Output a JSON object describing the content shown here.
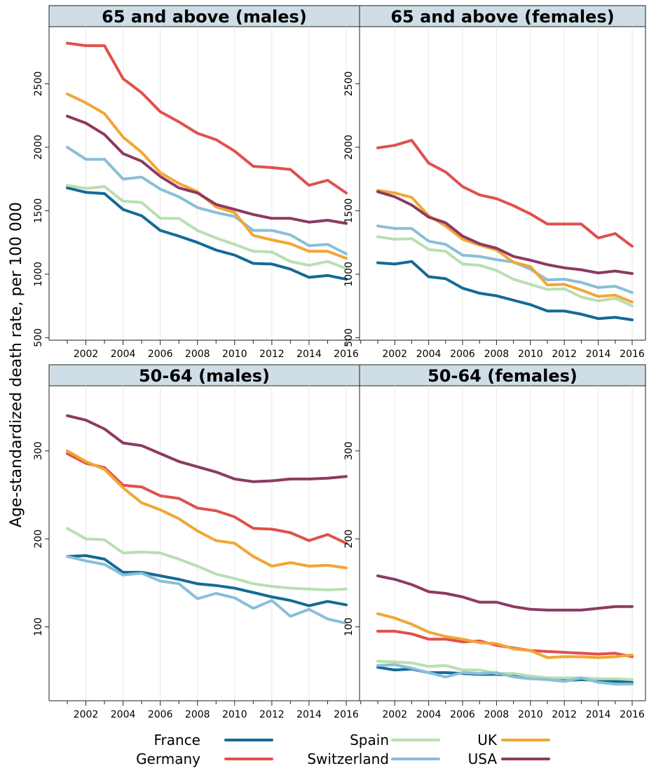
{
  "chart_data": {
    "type": "line",
    "ylabel": "Age-standardized death rate, per 100 000",
    "xlabel": "",
    "grid": true,
    "legend_position": "bottom",
    "x": [
      2001,
      2002,
      2003,
      2004,
      2005,
      2006,
      2007,
      2008,
      2009,
      2010,
      2011,
      2012,
      2013,
      2014,
      2015,
      2016
    ],
    "x_ticks": [
      "2002",
      "2004",
      "2006",
      "2008",
      "2010",
      "2012",
      "2014",
      "2016"
    ],
    "series_styles": [
      {
        "name": "France",
        "color": "#146a96"
      },
      {
        "name": "Germany",
        "color": "#e0514b"
      },
      {
        "name": "Spain",
        "color": "#b9dfb1"
      },
      {
        "name": "Switzerland",
        "color": "#89bfd8"
      },
      {
        "name": "UK",
        "color": "#f2a634"
      },
      {
        "name": "USA",
        "color": "#8c3a62"
      }
    ],
    "panels": [
      {
        "title": "65 and above (males)",
        "ylim": [
          480,
          2950
        ],
        "y_ticks": [
          "500",
          "1000",
          "1500",
          "2000",
          "2500"
        ],
        "series": [
          {
            "name": "France",
            "values": [
              1680,
              1645,
              1635,
              1510,
              1460,
              1345,
              1300,
              1250,
              1190,
              1150,
              1085,
              1080,
              1040,
              975,
              990,
              960
            ]
          },
          {
            "name": "Germany",
            "values": [
              2820,
              2800,
              2800,
              2540,
              2430,
              2280,
              2200,
              2110,
              2060,
              1970,
              1850,
              1840,
              1825,
              1700,
              1740,
              1640
            ]
          },
          {
            "name": "Spain",
            "values": [
              1700,
              1675,
              1690,
              1575,
              1565,
              1440,
              1440,
              1345,
              1285,
              1235,
              1180,
              1175,
              1100,
              1070,
              1100,
              1045
            ]
          },
          {
            "name": "Switzerland",
            "values": [
              2000,
              1905,
              1905,
              1750,
              1765,
              1670,
              1610,
              1525,
              1485,
              1455,
              1345,
              1345,
              1310,
              1225,
              1235,
              1160
            ]
          },
          {
            "name": "UK",
            "values": [
              2420,
              2350,
              2265,
              2080,
              1960,
              1800,
              1715,
              1650,
              1530,
              1485,
              1305,
              1270,
              1240,
              1180,
              1180,
              1125
            ]
          },
          {
            "name": "USA",
            "values": [
              2245,
              2190,
              2100,
              1950,
              1890,
              1770,
              1680,
              1640,
              1550,
              1510,
              1470,
              1440,
              1440,
              1410,
              1425,
              1400
            ]
          }
        ]
      },
      {
        "title": "65 and above (females)",
        "ylim": [
          480,
          2950
        ],
        "y_ticks": [
          "500",
          "1000",
          "1500",
          "2000",
          "2500"
        ],
        "series": [
          {
            "name": "France",
            "values": [
              1090,
              1080,
              1100,
              980,
              965,
              890,
              850,
              830,
              795,
              760,
              710,
              710,
              685,
              650,
              660,
              640
            ]
          },
          {
            "name": "Germany",
            "values": [
              1995,
              2015,
              2055,
              1875,
              1805,
              1690,
              1625,
              1595,
              1540,
              1475,
              1395,
              1395,
              1395,
              1285,
              1320,
              1220
            ]
          },
          {
            "name": "Spain",
            "values": [
              1295,
              1275,
              1280,
              1195,
              1180,
              1080,
              1070,
              1030,
              960,
              920,
              880,
              885,
              820,
              790,
              810,
              750
            ]
          },
          {
            "name": "Switzerland",
            "values": [
              1380,
              1360,
              1360,
              1260,
              1235,
              1150,
              1140,
              1115,
              1095,
              1040,
              955,
              960,
              935,
              895,
              905,
              855
            ]
          },
          {
            "name": "UK",
            "values": [
              1660,
              1640,
              1605,
              1460,
              1380,
              1275,
              1230,
              1190,
              1095,
              1060,
              915,
              920,
              875,
              825,
              835,
              780
            ]
          },
          {
            "name": "USA",
            "values": [
              1650,
              1610,
              1545,
              1450,
              1405,
              1300,
              1240,
              1205,
              1140,
              1110,
              1075,
              1050,
              1035,
              1010,
              1025,
              1005
            ]
          }
        ]
      },
      {
        "title": "50-64 (males)",
        "ylim": [
          16,
          374
        ],
        "y_ticks": [
          "100",
          "200",
          "300"
        ],
        "series": [
          {
            "name": "France",
            "values": [
              180,
              181,
              177,
              162,
              162,
              158,
              154,
              149,
              147,
              144,
              139,
              134,
              130,
              124,
              129,
              125
            ]
          },
          {
            "name": "Germany",
            "values": [
              297,
              286,
              281,
              261,
              259,
              249,
              246,
              235,
              232,
              225,
              212,
              211,
              207,
              198,
              205,
              195
            ]
          },
          {
            "name": "Spain",
            "values": [
              212,
              200,
              199,
              184,
              185,
              184,
              177,
              169,
              160,
              155,
              149,
              146,
              144,
              143,
              142,
              143
            ]
          },
          {
            "name": "Switzerland",
            "values": [
              180,
              175,
              171,
              159,
              161,
              152,
              149,
              132,
              138,
              133,
              121,
              130,
              112,
              120,
              109,
              104
            ]
          },
          {
            "name": "UK",
            "values": [
              300,
              288,
              279,
              258,
              241,
              233,
              223,
              209,
              198,
              195,
              180,
              169,
              173,
              169,
              170,
              167
            ]
          },
          {
            "name": "USA",
            "values": [
              340,
              335,
              325,
              309,
              306,
              297,
              288,
              282,
              276,
              268,
              265,
              266,
              268,
              268,
              269,
              271
            ]
          }
        ]
      },
      {
        "title": "50-64 (females)",
        "ylim": [
          16,
          374
        ],
        "y_ticks": [
          "100",
          "200",
          "300"
        ],
        "series": [
          {
            "name": "France",
            "values": [
              54,
              51,
              52,
              48,
              48,
              47,
              46,
              46,
              45,
              42,
              41,
              39,
              40,
              39,
              38,
              37
            ]
          },
          {
            "name": "Germany",
            "values": [
              95,
              95,
              92,
              86,
              86,
              83,
              84,
              79,
              76,
              73,
              72,
              71,
              70,
              69,
              70,
              66
            ]
          },
          {
            "name": "Spain",
            "values": [
              61,
              60,
              59,
              55,
              56,
              51,
              51,
              47,
              47,
              44,
              42,
              42,
              42,
              41,
              41,
              40
            ]
          },
          {
            "name": "Switzerland",
            "values": [
              56,
              57,
              53,
              48,
              43,
              48,
              47,
              48,
              43,
              41,
              40,
              38,
              42,
              37,
              35,
              35
            ]
          },
          {
            "name": "UK",
            "values": [
              115,
              110,
              103,
              94,
              89,
              86,
              82,
              81,
              75,
              73,
              65,
              66,
              66,
              65,
              66,
              68
            ]
          },
          {
            "name": "USA",
            "values": [
              158,
              154,
              148,
              140,
              138,
              134,
              128,
              128,
              123,
              120,
              119,
              119,
              119,
              121,
              123,
              123
            ]
          }
        ]
      }
    ],
    "legend": [
      {
        "label": "France",
        "color": "#146a96"
      },
      {
        "label": "Spain",
        "color": "#b9dfb1"
      },
      {
        "label": "UK",
        "color": "#f2a634"
      },
      {
        "label": "Germany",
        "color": "#e0514b"
      },
      {
        "label": "Switzerland",
        "color": "#89bfd8"
      },
      {
        "label": "USA",
        "color": "#8c3a62"
      }
    ]
  }
}
